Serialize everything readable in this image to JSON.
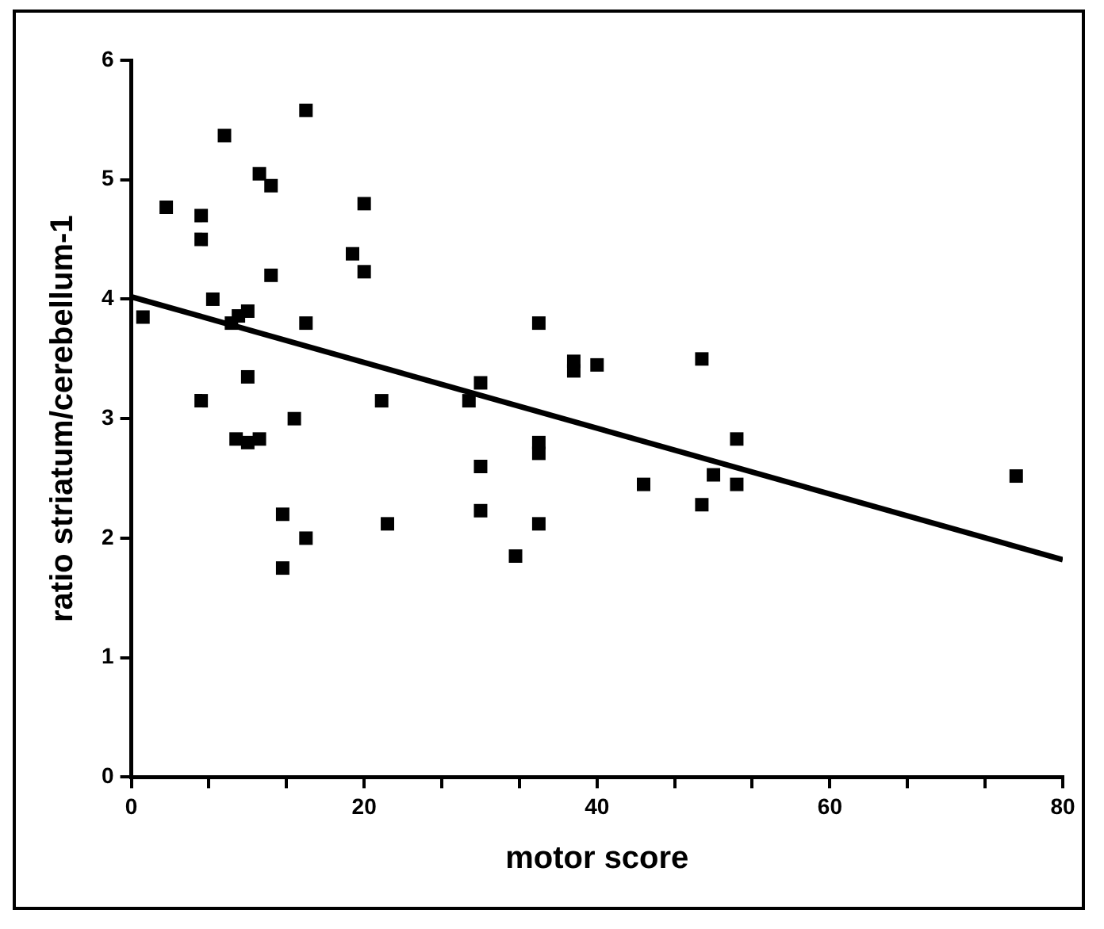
{
  "chart_data": {
    "type": "scatter",
    "xlabel": "motor score",
    "ylabel": "ratio striatum/cerebellum-1",
    "marker": "square",
    "grid": false,
    "legend": false,
    "xlim": [
      0,
      80
    ],
    "ylim": [
      0,
      6
    ],
    "xticks": [
      0,
      {
        "value": 6.67,
        "label": null
      },
      {
        "value": 13.33,
        "label": null
      },
      20,
      {
        "value": 26.67,
        "label": null
      },
      {
        "value": 33.33,
        "label": null
      },
      40,
      {
        "value": 46.67,
        "label": null
      },
      {
        "value": 53.33,
        "label": null
      },
      60,
      {
        "value": 66.67,
        "label": null
      },
      {
        "value": 73.33,
        "label": null
      },
      80
    ],
    "yticks": [
      0,
      1,
      2,
      3,
      4,
      5,
      6
    ],
    "series": [
      {
        "color": "#000000",
        "x": [
          1,
          3,
          6,
          6,
          6,
          7,
          8,
          8.6,
          9.2,
          10,
          10,
          9,
          10,
          11,
          11,
          12,
          12,
          13,
          13,
          14,
          15,
          15,
          15,
          20,
          19,
          20,
          21.5,
          22,
          29,
          30,
          30,
          30,
          33,
          35,
          35,
          35,
          35,
          38,
          38,
          40,
          44,
          49,
          49,
          50,
          52,
          52,
          76
        ],
        "values": [
          3.85,
          4.77,
          4.7,
          4.5,
          3.15,
          4.0,
          5.37,
          3.8,
          3.86,
          3.9,
          3.35,
          2.83,
          2.8,
          2.83,
          5.05,
          4.95,
          4.2,
          2.2,
          1.75,
          3.0,
          5.58,
          3.8,
          2.0,
          4.8,
          4.38,
          4.23,
          3.15,
          2.12,
          3.15,
          3.3,
          2.6,
          2.23,
          1.85,
          3.8,
          2.8,
          2.71,
          2.12,
          3.48,
          3.4,
          3.45,
          2.45,
          3.5,
          2.28,
          2.53,
          2.83,
          2.45,
          2.52
        ]
      },
      {
        "type": "line",
        "color": "#000000",
        "marker": "none",
        "x": [
          0,
          80
        ],
        "values": [
          4.02,
          1.82
        ]
      }
    ]
  }
}
